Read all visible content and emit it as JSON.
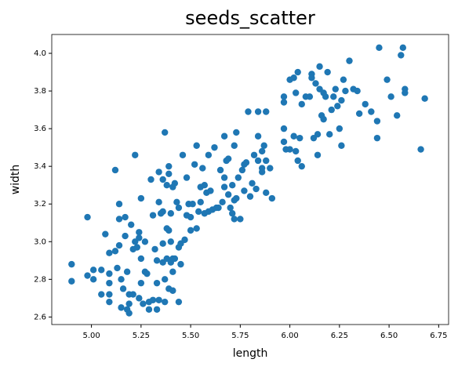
{
  "chart_data": {
    "type": "scatter",
    "title": "seeds_scatter",
    "x_label": "length",
    "y_label": "width",
    "color": "#1f77b4",
    "x": [
      4.9,
      4.9,
      4.98,
      4.98,
      5.01,
      5.01,
      5.05,
      5.05,
      5.07,
      5.09,
      5.09,
      5.09,
      5.09,
      5.09,
      5.12,
      5.12,
      5.13,
      5.14,
      5.14,
      5.14,
      5.15,
      5.15,
      5.16,
      5.17,
      5.17,
      5.18,
      5.18,
      5.19,
      5.19,
      5.19,
      5.2,
      5.21,
      5.21,
      5.22,
      5.22,
      5.23,
      5.24,
      5.24,
      5.24,
      5.25,
      5.25,
      5.25,
      5.26,
      5.27,
      5.27,
      5.28,
      5.29,
      5.29,
      5.3,
      5.31,
      5.31,
      5.32,
      5.33,
      5.33,
      5.33,
      5.34,
      5.34,
      5.34,
      5.35,
      5.36,
      5.36,
      5.36,
      5.36,
      5.37,
      5.37,
      5.37,
      5.38,
      5.38,
      5.38,
      5.39,
      5.39,
      5.39,
      5.39,
      5.4,
      5.4,
      5.4,
      5.41,
      5.41,
      5.41,
      5.41,
      5.42,
      5.42,
      5.43,
      5.44,
      5.44,
      5.44,
      5.45,
      5.45,
      5.46,
      5.47,
      5.48,
      5.48,
      5.49,
      5.5,
      5.5,
      5.51,
      5.52,
      5.53,
      5.53,
      5.54,
      5.55,
      5.55,
      5.56,
      5.57,
      5.57,
      5.58,
      5.59,
      5.59,
      5.6,
      5.61,
      5.62,
      5.63,
      5.64,
      5.65,
      5.66,
      5.67,
      5.67,
      5.67,
      5.68,
      5.69,
      5.69,
      5.7,
      5.71,
      5.71,
      5.72,
      5.72,
      5.72,
      5.73,
      5.73,
      5.74,
      5.75,
      5.76,
      5.77,
      5.77,
      5.78,
      5.79,
      5.8,
      5.81,
      5.82,
      5.83,
      5.84,
      5.84,
      5.84,
      5.86,
      5.86,
      5.86,
      5.87,
      5.88,
      5.88,
      5.88,
      5.9,
      5.91,
      5.97,
      5.97,
      5.97,
      5.97,
      5.98,
      6.0,
      6.0,
      6.02,
      6.02,
      6.03,
      6.03,
      6.04,
      6.04,
      6.05,
      6.06,
      6.06,
      6.08,
      6.1,
      6.11,
      6.11,
      6.12,
      6.13,
      6.14,
      6.14,
      6.15,
      6.15,
      6.16,
      6.17,
      6.17,
      6.18,
      6.19,
      6.2,
      6.21,
      6.22,
      6.23,
      6.24,
      6.25,
      6.26,
      6.26,
      6.27,
      6.28,
      6.3,
      6.32,
      6.34,
      6.35,
      6.38,
      6.41,
      6.44,
      6.44,
      6.45,
      6.49,
      6.51,
      6.54,
      6.56,
      6.57,
      6.58,
      6.58,
      6.66,
      6.68
    ],
    "y": [
      2.88,
      2.79,
      3.13,
      2.82,
      2.85,
      2.8,
      2.72,
      2.85,
      3.04,
      2.78,
      2.72,
      2.68,
      2.94,
      2.83,
      3.38,
      2.95,
      2.86,
      3.2,
      3.12,
      2.98,
      2.8,
      2.65,
      2.75,
      3.13,
      3.03,
      2.84,
      2.64,
      2.72,
      2.67,
      2.62,
      3.09,
      2.96,
      2.72,
      3.46,
      3.0,
      2.97,
      3.05,
      3.02,
      2.7,
      3.23,
      2.91,
      2.78,
      2.67,
      3.0,
      2.84,
      2.83,
      2.64,
      2.68,
      3.33,
      3.14,
      2.69,
      2.96,
      2.9,
      2.78,
      2.64,
      3.37,
      3.21,
      2.69,
      3.15,
      3.33,
      3.16,
      2.99,
      2.89,
      3.58,
      2.8,
      2.68,
      3.3,
      3.07,
      2.91,
      3.4,
      3.36,
      3.06,
      2.75,
      3.15,
      3.0,
      2.89,
      3.29,
      2.91,
      2.84,
      2.74,
      3.31,
      2.91,
      3.21,
      3.18,
      2.97,
      2.68,
      2.88,
      2.99,
      3.46,
      3.01,
      3.34,
      3.14,
      3.2,
      3.13,
      3.06,
      3.2,
      3.41,
      3.51,
      3.07,
      3.16,
      3.29,
      3.21,
      3.39,
      3.3,
      3.15,
      3.26,
      3.46,
      3.16,
      3.27,
      3.17,
      3.5,
      3.18,
      3.18,
      3.38,
      3.21,
      3.56,
      3.34,
      3.29,
      3.43,
      3.44,
      3.25,
      3.18,
      3.3,
      3.15,
      3.51,
      3.22,
      3.12,
      3.58,
      3.23,
      3.34,
      3.12,
      3.38,
      3.41,
      3.27,
      3.42,
      3.69,
      3.24,
      3.31,
      3.46,
      3.28,
      3.69,
      3.56,
      3.43,
      3.39,
      3.48,
      3.37,
      3.51,
      3.69,
      3.26,
      3.43,
      3.39,
      3.23,
      3.77,
      3.74,
      3.6,
      3.53,
      3.49,
      3.86,
      3.49,
      3.87,
      3.56,
      3.79,
      3.48,
      3.9,
      3.43,
      3.55,
      3.73,
      3.4,
      3.77,
      3.77,
      3.89,
      3.87,
      3.55,
      3.84,
      3.46,
      3.57,
      3.93,
      3.81,
      3.67,
      3.79,
      3.65,
      3.77,
      3.9,
      3.57,
      3.7,
      3.77,
      3.81,
      3.72,
      3.6,
      3.51,
      3.75,
      3.86,
      3.8,
      3.96,
      3.81,
      3.8,
      3.68,
      3.73,
      3.69,
      3.64,
      3.55,
      4.03,
      3.86,
      3.77,
      3.67,
      3.99,
      4.03,
      3.81,
      3.79,
      3.49,
      3.76
    ],
    "xlim": [
      4.8,
      6.8
    ],
    "xticks": [
      {
        "value": 5.0,
        "label": "5.00"
      },
      {
        "value": 5.25,
        "label": "5.25"
      },
      {
        "value": 5.5,
        "label": "5.50"
      },
      {
        "value": 5.75,
        "label": "5.75"
      },
      {
        "value": 6.0,
        "label": "6.00"
      },
      {
        "value": 6.25,
        "label": "6.25"
      },
      {
        "value": 6.5,
        "label": "6.50"
      },
      {
        "value": 6.75,
        "label": "6.75"
      }
    ],
    "ylim": [
      2.56,
      4.1
    ],
    "yticks": [
      2.6,
      2.8,
      {
        "value": 3.0,
        "label": "3.0"
      },
      3.2,
      3.4,
      3.6,
      3.8,
      {
        "value": 4.0,
        "label": "4.0"
      }
    ]
  }
}
